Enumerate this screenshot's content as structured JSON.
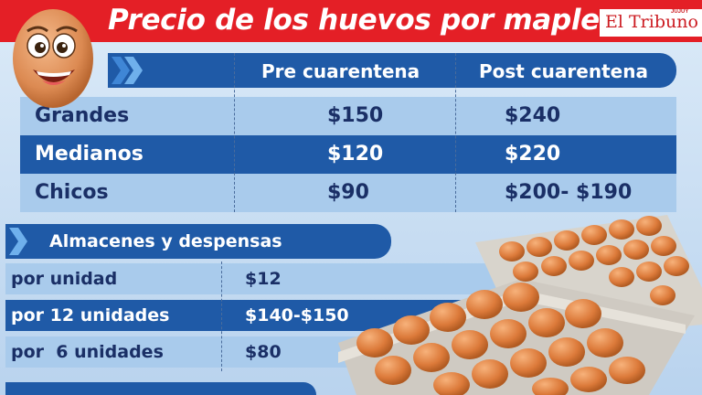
{
  "header": {
    "title": "Precio de los huevos por maple",
    "brand": "El Tribuno",
    "brand_small": "JUJUY"
  },
  "main_table": {
    "columns": [
      "Pre cuarentena",
      "Post cuarentena"
    ],
    "rows": [
      {
        "label": "Grandes",
        "pre": "$150",
        "post": "$240"
      },
      {
        "label": "Medianos",
        "pre": "$120",
        "post": "$220"
      },
      {
        "label": "Chicos",
        "pre": "$90",
        "post": "$200- $190"
      }
    ]
  },
  "stores_table": {
    "title": "Almacenes y despensas",
    "rows": [
      {
        "label": "por unidad",
        "price": "$12"
      },
      {
        "label": "por 12 unidades",
        "price": "$140-$150"
      },
      {
        "label": "por  6 unidades",
        "price": "$80"
      }
    ]
  },
  "colors": {
    "header_red": "#e41f26",
    "dark_blue": "#1f5aa7",
    "light_blue": "#a9cbec",
    "text_navy": "#1a2f66",
    "egg_orange": "#d97a3a"
  },
  "icons": [
    "egg-mascot-icon",
    "chevron-right-icon",
    "egg-cartons-illustration"
  ]
}
